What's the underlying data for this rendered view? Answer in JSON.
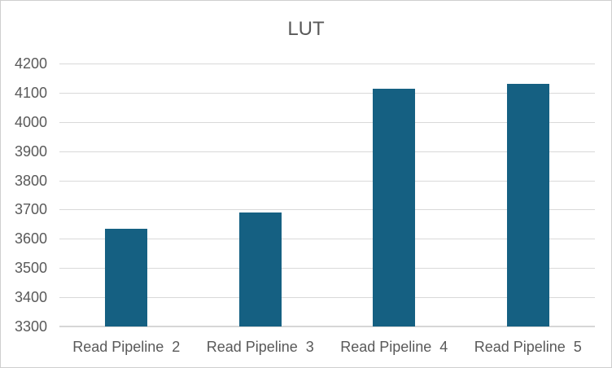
{
  "chart_data": {
    "type": "bar",
    "title": "LUT",
    "categories": [
      "Read Pipeline  2",
      "Read Pipeline  3",
      "Read Pipeline  4",
      "Read Pipeline  5"
    ],
    "values": [
      3635,
      3690,
      4115,
      4130
    ],
    "yticks": [
      3300,
      3400,
      3500,
      3600,
      3700,
      3800,
      3900,
      4000,
      4100,
      4200
    ],
    "ylim": [
      3300,
      4200
    ],
    "xlabel": "",
    "ylabel": "",
    "grid": true,
    "legend": false,
    "colors": {
      "bar": "#156082",
      "gridline": "#d9d9d9",
      "axis_line": "#d6d6d6",
      "text": "#595959",
      "chart_border": "#cfcfcf",
      "background": "#ffffff"
    }
  }
}
